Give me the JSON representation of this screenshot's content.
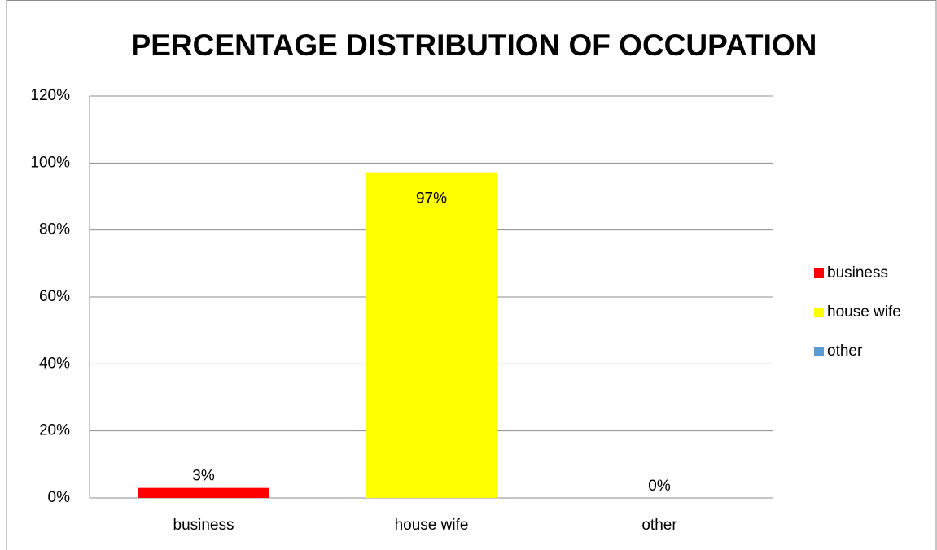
{
  "chart_data": {
    "type": "bar",
    "title": "PERCENTAGE DISTRIBUTION OF OCCUPATION",
    "categories": [
      "business",
      "house wife",
      "other"
    ],
    "values": [
      3,
      97,
      0
    ],
    "value_labels": [
      "3%",
      "97%",
      "0%"
    ],
    "colors": [
      "#ff0000",
      "#ffff00",
      "#5b9bd5"
    ],
    "ylim": [
      0,
      120
    ],
    "yticks": [
      {
        "value": 0,
        "label": "0%"
      },
      {
        "value": 20,
        "label": "20%"
      },
      {
        "value": 40,
        "label": "40%"
      },
      {
        "value": 60,
        "label": "60%"
      },
      {
        "value": 80,
        "label": "80%"
      },
      {
        "value": 100,
        "label": "100%"
      },
      {
        "value": 120,
        "label": "120%"
      }
    ],
    "grid": true,
    "legend": "right"
  }
}
